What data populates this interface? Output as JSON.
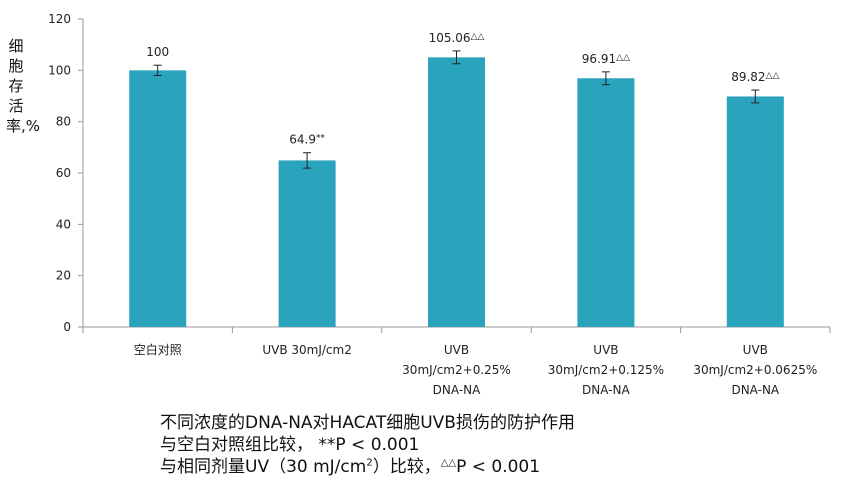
{
  "chart_data": {
    "type": "bar",
    "categories": [
      [
        "空白对照"
      ],
      [
        "UVB 30mJ/cm2"
      ],
      [
        "UVB",
        "30mJ/cm2+0.25%",
        "DNA-NA"
      ],
      [
        "UVB",
        "30mJ/cm2+0.125%",
        "DNA-NA"
      ],
      [
        "UVB",
        "30mJ/cm2+0.0625%",
        "DNA-NA"
      ]
    ],
    "values": [
      100,
      64.9,
      105.06,
      96.91,
      89.82
    ],
    "errors": [
      2,
      3,
      2.5,
      2.5,
      2.5
    ],
    "value_labels": [
      "100",
      "64.9",
      "105.06",
      "96.91",
      "89.82"
    ],
    "marks": [
      "",
      "**",
      "△△",
      "△△",
      "△△"
    ],
    "ylabel": "细胞存活率,%",
    "ylim": [
      0,
      120
    ],
    "yticks": [
      0,
      20,
      40,
      60,
      80,
      100,
      120
    ],
    "bar_color": "#2aa3bd",
    "grid": false
  },
  "caption": {
    "line1": "不同浓度的DNA-NA对HACAT细胞UVB损伤的防护作用",
    "line2": "与空白对照组比较， **P < 0.001",
    "line3_prefix": "与相同剂量UV（30 mJ/cm",
    "line3_sup": "2",
    "line3_middle": "）比较，",
    "line3_mark": "△△",
    "line3_suffix": "P < 0.001"
  }
}
